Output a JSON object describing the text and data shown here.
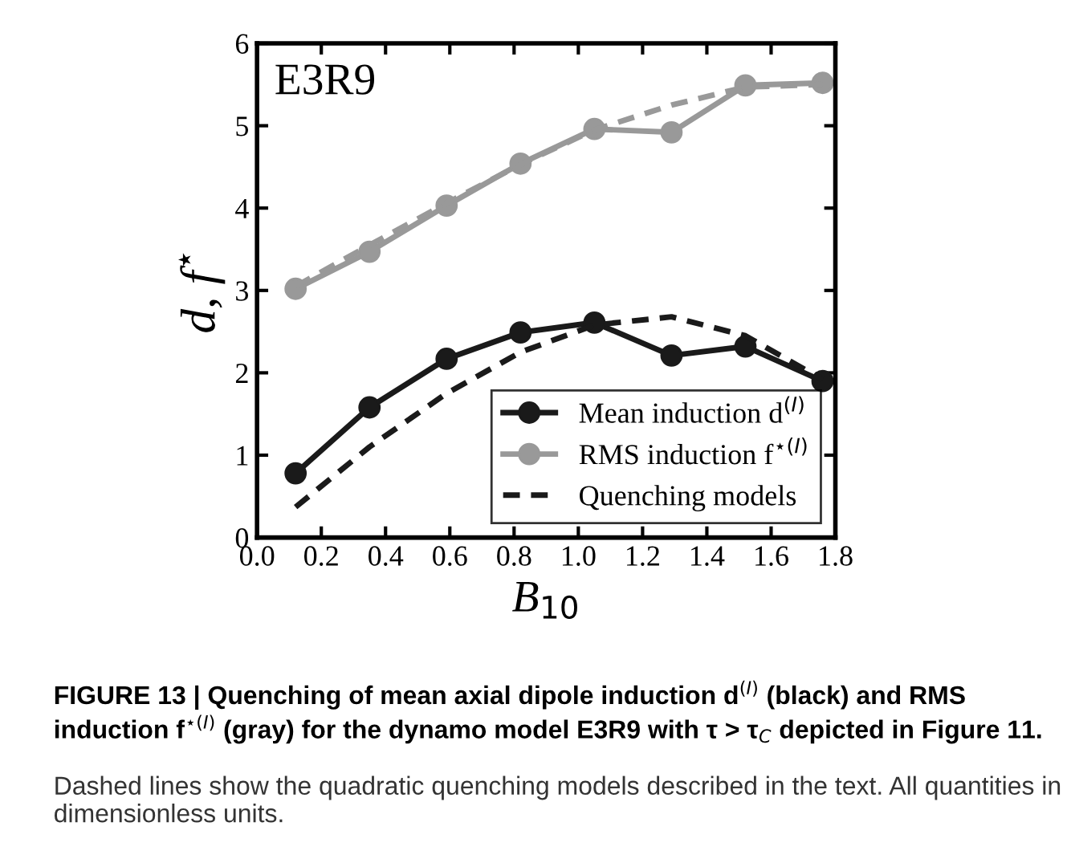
{
  "chart_data": {
    "type": "line",
    "xlabel": "B$_{10}$",
    "ylabel": "d, f$^{⋆}$",
    "xlim": [
      0.0,
      1.8
    ],
    "xticks": [
      {
        "value": 0,
        "label": "0.0"
      },
      0.2,
      0.4,
      0.6,
      0.8,
      {
        "value": 1,
        "label": "1.0"
      },
      1.2,
      1.4,
      1.6,
      1.8
    ],
    "ylim": [
      0,
      6
    ],
    "yticks": [
      0,
      1,
      2,
      3,
      4,
      5,
      6
    ],
    "grid": false,
    "legend": "bottom right",
    "x": [
      0.12,
      0.35,
      0.59,
      0.82,
      1.05,
      1.29,
      1.52,
      1.76
    ],
    "series": [
      {
        "name": "Mean induction d$^{(I)}$",
        "color": "#1a1a1a",
        "marker": "circle",
        "line_style": "solid",
        "values": [
          0.78,
          1.58,
          2.17,
          2.49,
          2.61,
          2.21,
          2.32,
          1.9
        ]
      },
      {
        "name": "RMS induction f$^{⋆(I)}$",
        "color": "#999999",
        "marker": "circle",
        "line_style": "solid",
        "values": [
          3.02,
          3.47,
          4.03,
          4.54,
          4.96,
          4.92,
          5.49,
          5.52
        ]
      },
      {
        "name": "Quenching models",
        "color": "#1a1a1a",
        "marker": "none",
        "line_style": "dashed",
        "values": [
          0.37,
          1.1,
          1.75,
          2.25,
          2.58,
          2.68,
          2.45,
          1.92
        ]
      },
      {
        "color": "#999999",
        "marker": "none",
        "line_style": "dashed",
        "values": [
          3.05,
          3.55,
          4.06,
          4.53,
          4.95,
          5.25,
          5.47,
          5.5
        ]
      }
    ],
    "annotations": [
      "E3R9",
      "FIGURE 13 | Quenching of mean axial dipole induction d$^{(I)}$ (black) and RMS induction f$^{⋆(I)}$ (gray) for the dynamo model E3R9 with τ > τ$_{C}$ depicted in Figure 11.",
      "Dashed lines show the quadratic quenching models described in the text. All quantities in dimensionless units."
    ]
  }
}
